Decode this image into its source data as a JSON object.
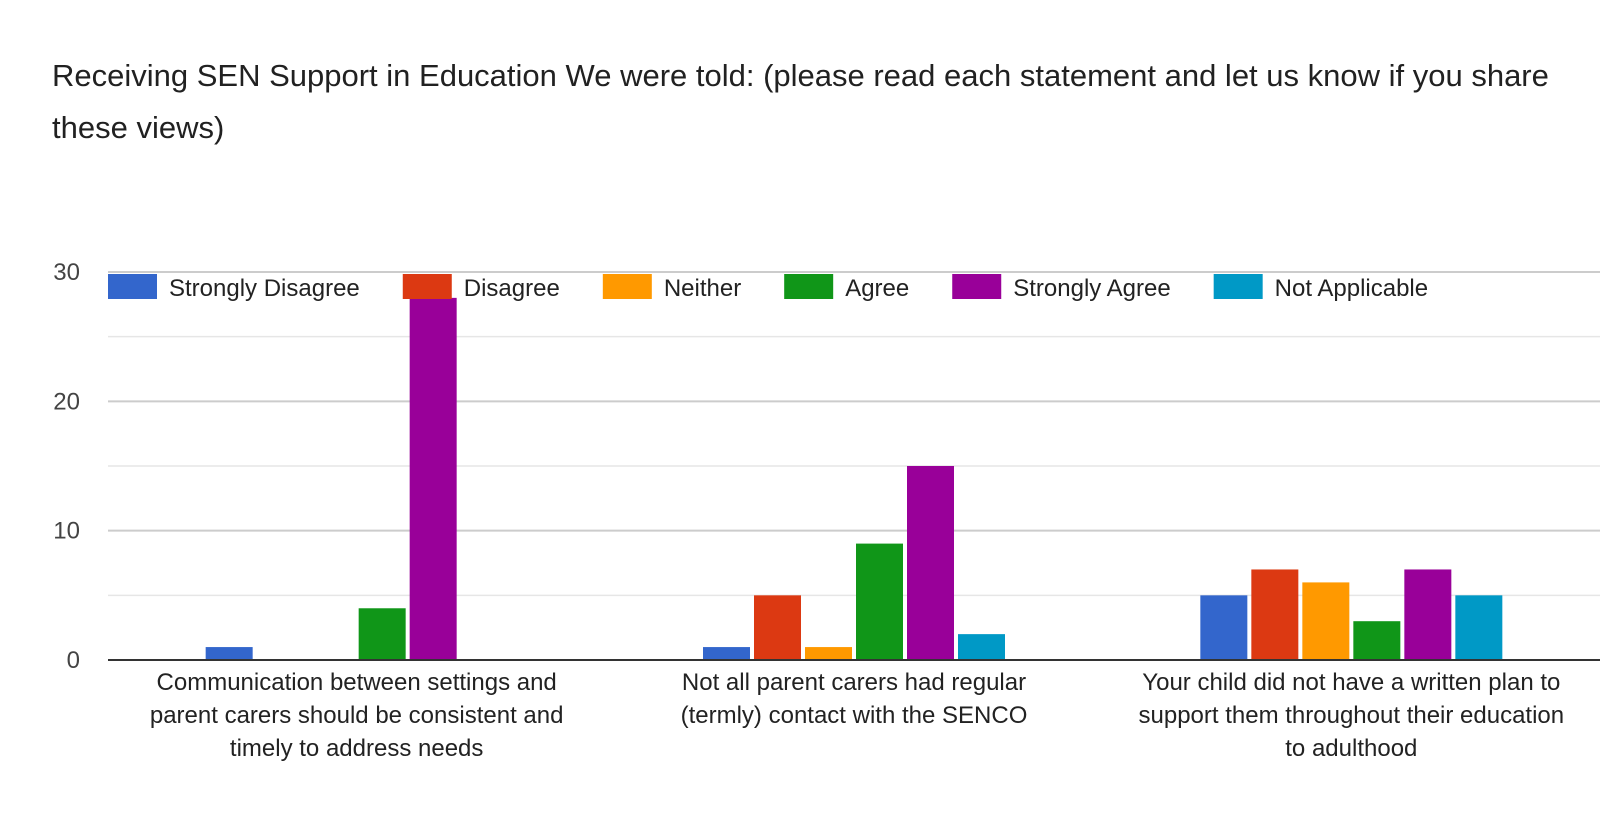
{
  "chart_data": {
    "type": "bar",
    "title": "Receiving SEN Support in Education   We were told:   (please read each statement and let us know if you share these views)",
    "categories": [
      [
        "Communication between settings and",
        "parent carers should be consistent and",
        "timely to address needs"
      ],
      [
        "Not all parent carers had regular",
        "(termly) contact with the SENCO"
      ],
      [
        "Your child did not have a written plan to",
        "support them throughout their education",
        "to adulthood"
      ]
    ],
    "series": [
      {
        "name": "Strongly Disagree",
        "color": "#3366cc",
        "values": [
          1,
          1,
          5
        ]
      },
      {
        "name": "Disagree",
        "color": "#dc3912",
        "values": [
          0,
          5,
          7
        ]
      },
      {
        "name": "Neither",
        "color": "#ff9900",
        "values": [
          0,
          1,
          6
        ]
      },
      {
        "name": "Agree",
        "color": "#109618",
        "values": [
          4,
          9,
          3
        ]
      },
      {
        "name": "Strongly Agree",
        "color": "#990099",
        "values": [
          28,
          15,
          7
        ]
      },
      {
        "name": "Not Applicable",
        "color": "#0099c6",
        "values": [
          0,
          2,
          5
        ]
      }
    ],
    "ylim": [
      0,
      30
    ],
    "yticks": [
      0,
      10,
      20,
      30
    ],
    "grid": true,
    "legend_position": "top",
    "xlabel": "",
    "ylabel": ""
  }
}
